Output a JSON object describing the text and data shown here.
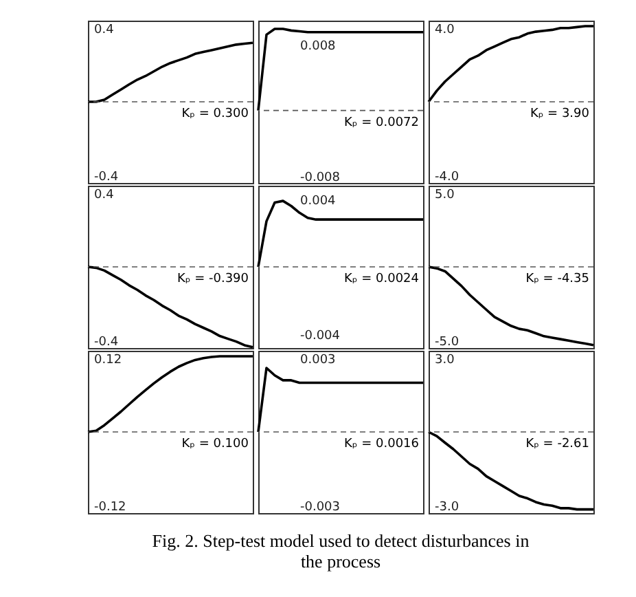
{
  "chart_data": [
    {
      "type": "line",
      "categories": [
        null,
        null,
        null,
        null,
        null,
        null,
        null,
        null,
        null,
        null,
        null,
        null,
        null,
        null,
        null,
        null,
        null,
        null,
        null,
        null,
        null
      ],
      "series": [
        {
          "color": "#000000",
          "values": [
            0,
            0,
            0.011,
            0.039,
            0.066,
            0.094,
            0.12,
            0.14,
            0.165,
            0.19,
            0.21,
            0.225,
            0.24,
            0.26,
            0.27,
            0.28,
            0.29,
            0.3,
            0.31,
            0.315,
            0.32
          ]
        }
      ],
      "ylim": [
        -0.44,
        0.44
      ],
      "yticks": [
        0.4,
        -0.4
      ],
      "tick_labels": "y",
      "ref_lines": [
        {
          "axis": "y",
          "value": 0,
          "line_style": "dashed"
        }
      ],
      "annotations": [
        "Kₚ = 0.300"
      ]
    },
    {
      "type": "line",
      "categories": [
        null,
        null,
        null,
        null,
        null,
        null,
        null,
        null,
        null,
        null,
        null,
        null,
        null,
        null,
        null,
        null,
        null,
        null,
        null,
        null,
        null
      ],
      "series": [
        {
          "color": "#000000",
          "values": [
            0,
            0.0092,
            0.0099,
            0.0099,
            0.0097,
            0.0096,
            0.0095,
            0.0095,
            0.0095,
            0.0095,
            0.0095,
            0.0095,
            0.0095,
            0.0095,
            0.0095,
            0.0095,
            0.0095,
            0.0095,
            0.0095,
            0.0095,
            0.0095
          ]
        }
      ],
      "ylim": [
        -0.0088,
        0.0109
      ],
      "yticks": [
        0.008,
        -0.008
      ],
      "tick_labels": "y",
      "ref_lines": [
        {
          "axis": "y",
          "value": 0,
          "line_style": "dashed"
        }
      ],
      "annotations": [
        "Kₚ = 0.0072"
      ]
    },
    {
      "type": "line",
      "categories": [
        null,
        null,
        null,
        null,
        null,
        null,
        null,
        null,
        null,
        null,
        null,
        null,
        null,
        null,
        null,
        null,
        null,
        null,
        null,
        null,
        null
      ],
      "series": [
        {
          "color": "#000000",
          "values": [
            0,
            0.6,
            1.1,
            1.5,
            1.9,
            2.3,
            2.5,
            2.8,
            3.0,
            3.2,
            3.4,
            3.5,
            3.7,
            3.8,
            3.85,
            3.9,
            4.0,
            4.0,
            4.05,
            4.1,
            4.1
          ]
        }
      ],
      "ylim": [
        -4.4,
        4.4
      ],
      "yticks": [
        {
          "value": 4,
          "label": "4.0"
        },
        {
          "value": -4,
          "label": "-4.0"
        }
      ],
      "tick_labels": "y",
      "ref_lines": [
        {
          "axis": "y",
          "value": 0,
          "line_style": "dashed"
        }
      ],
      "annotations": [
        "Kₚ = 3.90"
      ]
    },
    {
      "type": "line",
      "categories": [
        null,
        null,
        null,
        null,
        null,
        null,
        null,
        null,
        null,
        null,
        null,
        null,
        null,
        null,
        null,
        null,
        null,
        null,
        null,
        null,
        null
      ],
      "series": [
        {
          "color": "#000000",
          "values": [
            0,
            -0.005,
            -0.02,
            -0.045,
            -0.07,
            -0.1,
            -0.125,
            -0.155,
            -0.18,
            -0.21,
            -0.235,
            -0.265,
            -0.285,
            -0.31,
            -0.33,
            -0.35,
            -0.375,
            -0.39,
            -0.405,
            -0.425,
            -0.435
          ]
        }
      ],
      "ylim": [
        -0.44,
        0.44
      ],
      "yticks": [
        0.4,
        -0.4
      ],
      "tick_labels": "y",
      "ref_lines": [
        {
          "axis": "y",
          "value": 0,
          "line_style": "dashed"
        }
      ],
      "annotations": [
        "Kₚ = -0.390"
      ]
    },
    {
      "type": "line",
      "categories": [
        null,
        null,
        null,
        null,
        null,
        null,
        null,
        null,
        null,
        null,
        null,
        null,
        null,
        null,
        null,
        null,
        null,
        null,
        null,
        null,
        null
      ],
      "series": [
        {
          "color": "#000000",
          "values": [
            0,
            0.0027,
            0.0038,
            0.0039,
            0.0036,
            0.0032,
            0.0029,
            0.0028,
            0.0028,
            0.0028,
            0.0028,
            0.0028,
            0.0028,
            0.0028,
            0.0028,
            0.0028,
            0.0028,
            0.0028,
            0.0028,
            0.0028,
            0.0028
          ]
        }
      ],
      "ylim": [
        -0.0048,
        0.0048
      ],
      "yticks": [
        0.004,
        -0.004
      ],
      "tick_labels": "y",
      "ref_lines": [
        {
          "axis": "y",
          "value": 0,
          "line_style": "dashed"
        }
      ],
      "annotations": [
        "Kₚ = 0.0024"
      ]
    },
    {
      "type": "line",
      "categories": [
        null,
        null,
        null,
        null,
        null,
        null,
        null,
        null,
        null,
        null,
        null,
        null,
        null,
        null,
        null,
        null,
        null,
        null,
        null,
        null,
        null
      ],
      "series": [
        {
          "color": "#000000",
          "values": [
            0,
            -0.1,
            -0.3,
            -0.8,
            -1.3,
            -1.9,
            -2.4,
            -2.9,
            -3.4,
            -3.7,
            -4.0,
            -4.2,
            -4.3,
            -4.5,
            -4.7,
            -4.8,
            -4.9,
            -5.0,
            -5.1,
            -5.2,
            -5.3
          ]
        }
      ],
      "ylim": [
        -5.5,
        5.5
      ],
      "yticks": [
        {
          "value": 5,
          "label": "5.0"
        },
        {
          "value": -5,
          "label": "-5.0"
        }
      ],
      "tick_labels": "y",
      "ref_lines": [
        {
          "axis": "y",
          "value": 0,
          "line_style": "dashed"
        }
      ],
      "annotations": [
        "Kₚ = -4.35"
      ]
    },
    {
      "type": "line",
      "categories": [
        null,
        null,
        null,
        null,
        null,
        null,
        null,
        null,
        null,
        null,
        null,
        null,
        null,
        null,
        null,
        null,
        null,
        null,
        null,
        null,
        null
      ],
      "series": [
        {
          "color": "#000000",
          "values": [
            0,
            0.002,
            0.011,
            0.022,
            0.033,
            0.045,
            0.057,
            0.068,
            0.079,
            0.089,
            0.098,
            0.106,
            0.112,
            0.117,
            0.12,
            0.122,
            0.123,
            0.123,
            0.123,
            0.123,
            0.123
          ]
        }
      ],
      "ylim": [
        -0.132,
        0.132
      ],
      "yticks": [
        0.12,
        -0.12
      ],
      "tick_labels": "y",
      "ref_lines": [
        {
          "axis": "y",
          "value": 0,
          "line_style": "dashed"
        }
      ],
      "annotations": [
        "Kₚ = 0.100"
      ]
    },
    {
      "type": "line",
      "categories": [
        null,
        null,
        null,
        null,
        null,
        null,
        null,
        null,
        null,
        null,
        null,
        null,
        null,
        null,
        null,
        null,
        null,
        null,
        null,
        null,
        null
      ],
      "series": [
        {
          "color": "#000000",
          "values": [
            0,
            0.0026,
            0.0023,
            0.0021,
            0.0021,
            0.002,
            0.002,
            0.002,
            0.002,
            0.002,
            0.002,
            0.002,
            0.002,
            0.002,
            0.002,
            0.002,
            0.002,
            0.002,
            0.002,
            0.002,
            0.002
          ]
        }
      ],
      "ylim": [
        -0.0033,
        0.0033
      ],
      "yticks": [
        0.003,
        -0.003
      ],
      "tick_labels": "y",
      "ref_lines": [
        {
          "axis": "y",
          "value": 0,
          "line_style": "dashed"
        }
      ],
      "annotations": [
        "Kₚ = 0.0016"
      ]
    },
    {
      "type": "line",
      "categories": [
        null,
        null,
        null,
        null,
        null,
        null,
        null,
        null,
        null,
        null,
        null,
        null,
        null,
        null,
        null,
        null,
        null,
        null,
        null,
        null,
        null
      ],
      "series": [
        {
          "color": "#000000",
          "values": [
            0,
            -0.17,
            -0.44,
            -0.7,
            -1.0,
            -1.3,
            -1.5,
            -1.8,
            -2.0,
            -2.2,
            -2.4,
            -2.6,
            -2.7,
            -2.85,
            -2.95,
            -3.0,
            -3.1,
            -3.1,
            -3.15,
            -3.15,
            -3.15
          ]
        }
      ],
      "ylim": [
        -3.3,
        3.3
      ],
      "yticks": [
        {
          "value": 3,
          "label": "3.0"
        },
        {
          "value": -3,
          "label": "-3.0"
        }
      ],
      "tick_labels": "y",
      "ref_lines": [
        {
          "axis": "y",
          "value": 0,
          "line_style": "dashed"
        }
      ],
      "annotations": [
        "Kₚ = -2.61",
        "Fig. 2. Step-test model used to detect disturbances in the process"
      ]
    }
  ]
}
